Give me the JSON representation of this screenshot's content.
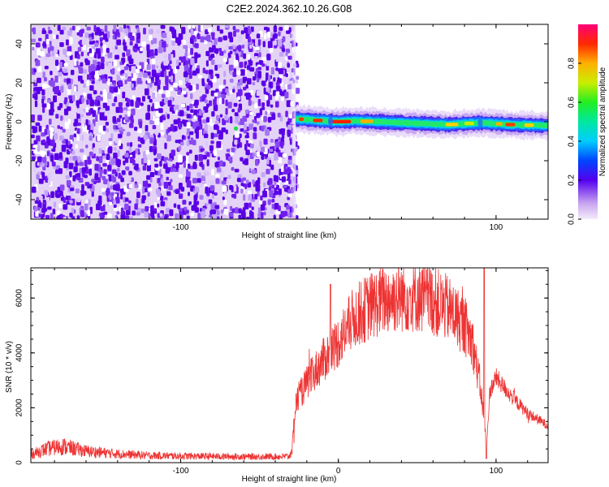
{
  "title": "C2E2.2024.362.10.26.G08",
  "chart_data": [
    {
      "type": "heatmap",
      "xlabel": "Height of straight line (km)",
      "ylabel": "Frequency (Hz)",
      "xlim": [
        -195,
        133
      ],
      "ylim": [
        -50,
        50
      ],
      "x_ticks": [
        -100,
        100
      ],
      "y_ticks": [
        -40,
        -20,
        0,
        20,
        40
      ],
      "noise_region_x": [
        -195,
        -27
      ],
      "signal_line_x": [
        -27,
        133
      ],
      "signal_line_freq": [
        [
          -27,
          1.5
        ],
        [
          -10,
          0.5
        ],
        [
          0,
          0
        ],
        [
          10,
          0.5
        ],
        [
          40,
          -0.5
        ],
        [
          70,
          -1.5
        ],
        [
          90,
          -0.5
        ],
        [
          110,
          -1.5
        ],
        [
          133,
          -2
        ]
      ],
      "colorbar": {
        "label": "Normalized spectral amplitude",
        "range": [
          0,
          1
        ],
        "ticks": [
          0.0,
          0.2,
          0.4,
          0.6,
          0.8
        ]
      }
    },
    {
      "type": "line",
      "xlabel": "Height of straight line (km)",
      "ylabel": "SNR (10 * v/v)",
      "xlim": [
        -195,
        133
      ],
      "ylim": [
        0,
        7100
      ],
      "x_ticks": [
        -100,
        0,
        100
      ],
      "y_ticks": [
        0,
        2000,
        4000,
        6000
      ],
      "color": "#ee3333",
      "envelope": {
        "x": [
          -195,
          -185,
          -175,
          -160,
          -140,
          -120,
          -100,
          -80,
          -60,
          -40,
          -31,
          -29,
          -27,
          -20,
          -10,
          0,
          10,
          20,
          30,
          40,
          50,
          60,
          70,
          80,
          85,
          90,
          93,
          94,
          96,
          100,
          110,
          120,
          133
        ],
        "y": [
          300,
          500,
          600,
          420,
          320,
          260,
          240,
          230,
          220,
          220,
          230,
          600,
          2200,
          2900,
          3700,
          4400,
          5300,
          5700,
          5950,
          6050,
          6050,
          5900,
          5600,
          5000,
          4400,
          2800,
          1300,
          500,
          2600,
          3100,
          2400,
          1800,
          1350
        ]
      }
    }
  ]
}
